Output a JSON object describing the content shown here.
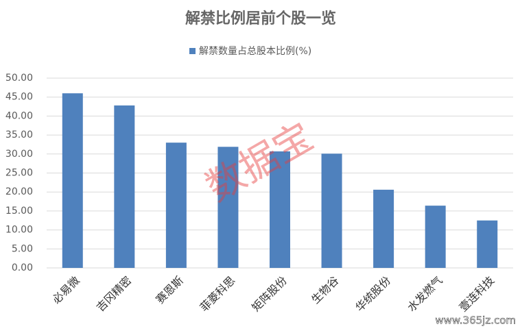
{
  "chart_data": {
    "type": "bar",
    "title": "解禁比例居前个股一览",
    "categories": [
      "必易微",
      "吉冈精密",
      "赛恩斯",
      "菲菱科思",
      "矩阵股份",
      "生物谷",
      "华统股份",
      "水发燃气",
      "壹连科技"
    ],
    "series": [
      {
        "name": "解禁数量占总股本比例(%)",
        "color": "#4f81bd",
        "values": [
          46.0,
          42.8,
          33.0,
          31.9,
          30.7,
          30.1,
          20.6,
          16.4,
          12.5
        ]
      }
    ],
    "ylim": [
      0,
      50
    ],
    "yticks": [
      {
        "value": 0,
        "label": "0.00"
      },
      {
        "value": 5,
        "label": "5.00"
      },
      {
        "value": 10,
        "label": "10.00"
      },
      {
        "value": 15,
        "label": "15.00"
      },
      {
        "value": 20,
        "label": "20.00"
      },
      {
        "value": 25,
        "label": "25.00"
      },
      {
        "value": 30,
        "label": "30.00"
      },
      {
        "value": 35,
        "label": "35.00"
      },
      {
        "value": 40,
        "label": "40.00"
      },
      {
        "value": 45,
        "label": "45.00"
      },
      {
        "value": 50,
        "label": "50.00"
      }
    ],
    "grid": true,
    "legend": "top",
    "watermark": "数据宝",
    "source_mark": "www.365jz.com"
  }
}
